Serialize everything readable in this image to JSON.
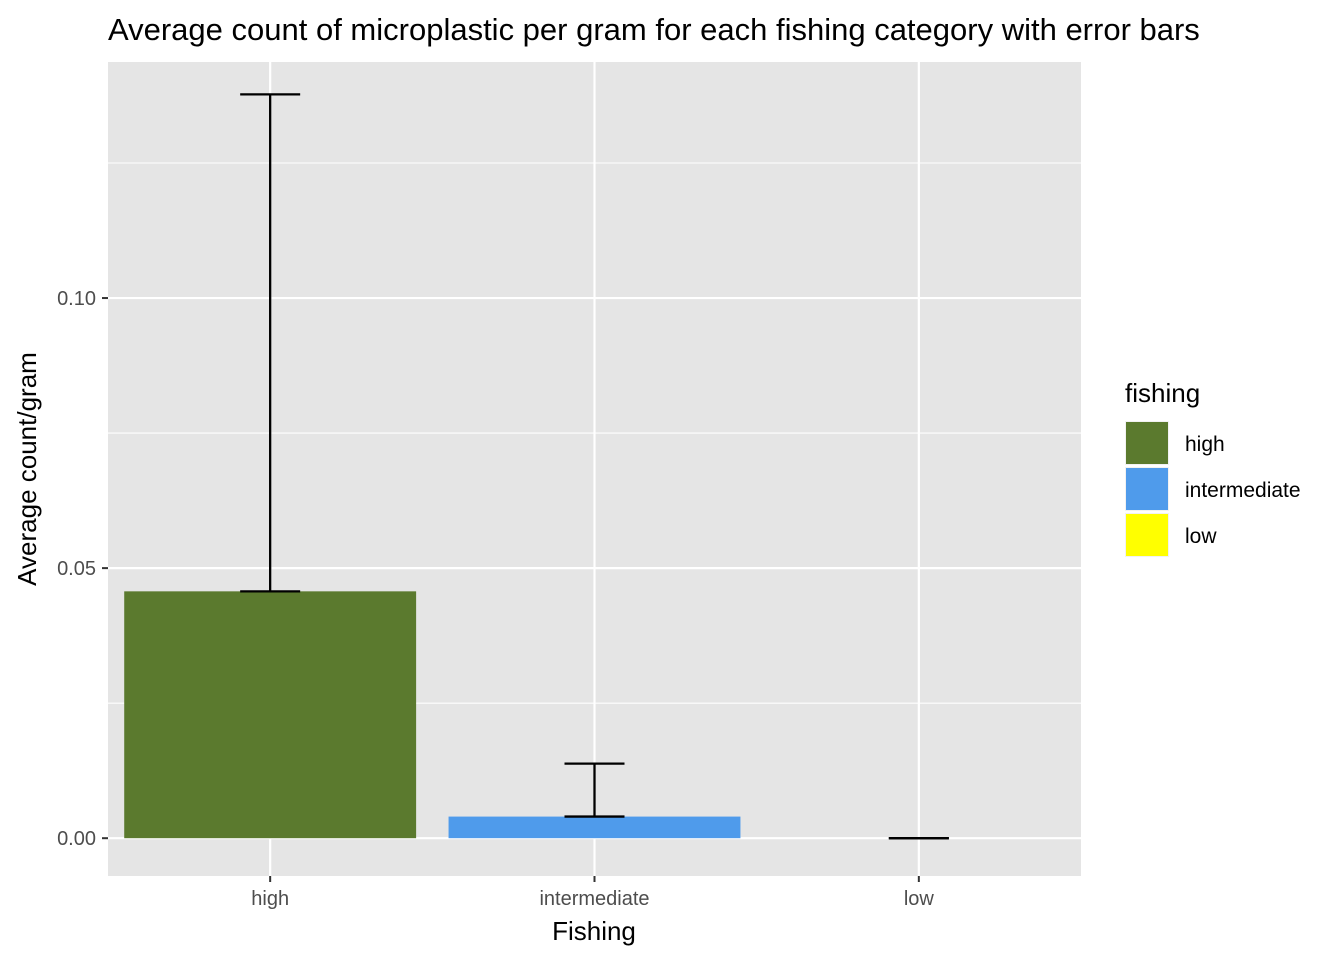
{
  "chart_data": {
    "type": "bar",
    "title": "Average count of microplastic per gram for each fishing category with error bars",
    "xlabel": "Fishing",
    "ylabel": "Average count/gram",
    "categories": [
      "high",
      "intermediate",
      "low"
    ],
    "values": [
      0.0457,
      0.004,
      0.0
    ],
    "error_upper": [
      0.1377,
      0.0138,
      0.0
    ],
    "error_lower": [
      0.0457,
      0.004,
      0.0
    ],
    "colors": [
      "#5b7a2e",
      "#4f9beb",
      "#ffff00"
    ],
    "ylim": [
      -0.007,
      0.1437
    ],
    "yticks": [
      0.0,
      0.05,
      0.1
    ],
    "ytick_labels": [
      "0.00",
      "0.05",
      "0.10"
    ],
    "grid": true,
    "legend": {
      "title": "fishing",
      "position": "right",
      "entries": [
        "high",
        "intermediate",
        "low"
      ]
    },
    "panel_background": "#e5e5e5",
    "grid_color": "#ffffff",
    "errorbar_color": "#000000"
  }
}
